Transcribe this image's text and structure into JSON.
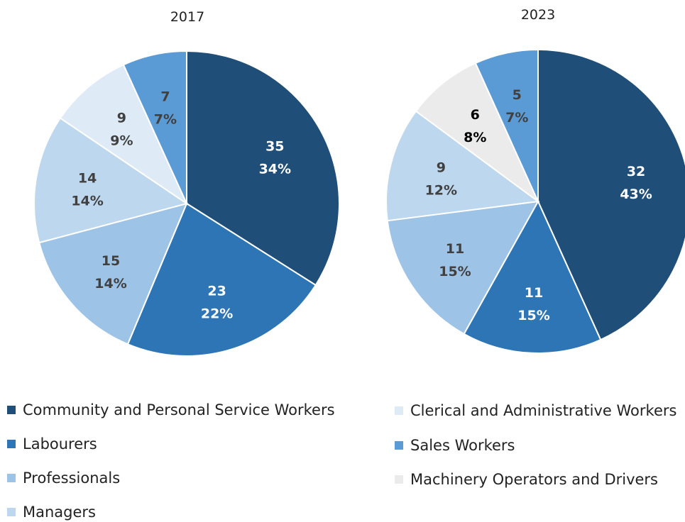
{
  "chart_data": [
    {
      "type": "pie",
      "title": "2017",
      "slices": [
        {
          "category": "Community and Personal Service Workers",
          "value": 35,
          "percent": "34%"
        },
        {
          "category": "Labourers",
          "value": 23,
          "percent": "22%"
        },
        {
          "category": "Professionals",
          "value": 15,
          "percent": "14%"
        },
        {
          "category": "Managers",
          "value": 14,
          "percent": "14%"
        },
        {
          "category": "Clerical and Administrative Workers",
          "value": 9,
          "percent": "9%"
        },
        {
          "category": "Sales Workers",
          "value": 7,
          "percent": "7%"
        }
      ]
    },
    {
      "type": "pie",
      "title": "2023",
      "slices": [
        {
          "category": "Community and Personal Service Workers",
          "value": 32,
          "percent": "43%"
        },
        {
          "category": "Labourers",
          "value": 11,
          "percent": "15%"
        },
        {
          "category": "Professionals",
          "value": 11,
          "percent": "15%"
        },
        {
          "category": "Managers",
          "value": 9,
          "percent": "12%"
        },
        {
          "category": "Machinery Operators and Drivers",
          "value": 6,
          "percent": "8%"
        },
        {
          "category": "Sales Workers",
          "value": 5,
          "percent": "7%"
        }
      ]
    }
  ],
  "legend": {
    "placement": "bottom",
    "items": [
      {
        "label": "Community and Personal Service Workers",
        "color": "#1f4e79"
      },
      {
        "label": "Labourers",
        "color": "#2e75b6"
      },
      {
        "label": "Professionals",
        "color": "#9dc3e6"
      },
      {
        "label": "Managers",
        "color": "#bdd7ee"
      },
      {
        "label": "Clerical and Administrative Workers",
        "color": "#deebf7"
      },
      {
        "label": "Sales Workers",
        "color": "#5b9bd5"
      },
      {
        "label": "Machinery Operators and Drivers",
        "color": "#ebebeb"
      }
    ]
  }
}
